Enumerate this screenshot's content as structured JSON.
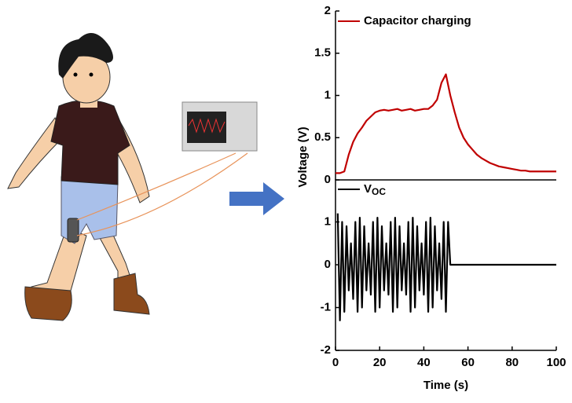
{
  "chart_data": [
    {
      "type": "line",
      "ylabel": "Voltage (V)",
      "ylim": [
        0,
        2
      ],
      "yticks": [
        0,
        0.5,
        1,
        1.5,
        2
      ],
      "xlim": [
        0,
        100
      ],
      "series": [
        {
          "name": "Capacitor charging",
          "color": "#c00000",
          "x": [
            0,
            2,
            4,
            6,
            8,
            10,
            12,
            14,
            16,
            18,
            20,
            22,
            24,
            26,
            28,
            30,
            32,
            34,
            36,
            38,
            40,
            42,
            44,
            46,
            48,
            50,
            52,
            54,
            56,
            58,
            60,
            62,
            64,
            66,
            68,
            70,
            72,
            74,
            76,
            78,
            80,
            82,
            84,
            86,
            88,
            90,
            92,
            94,
            96,
            98,
            100
          ],
          "values": [
            0.08,
            0.08,
            0.1,
            0.3,
            0.45,
            0.55,
            0.62,
            0.7,
            0.75,
            0.8,
            0.82,
            0.83,
            0.82,
            0.83,
            0.84,
            0.82,
            0.83,
            0.84,
            0.82,
            0.83,
            0.84,
            0.84,
            0.88,
            0.95,
            1.15,
            1.25,
            1.0,
            0.8,
            0.62,
            0.5,
            0.42,
            0.36,
            0.3,
            0.26,
            0.23,
            0.2,
            0.18,
            0.16,
            0.15,
            0.14,
            0.13,
            0.12,
            0.11,
            0.11,
            0.1,
            0.1,
            0.1,
            0.1,
            0.1,
            0.1,
            0.1
          ]
        }
      ]
    },
    {
      "type": "line",
      "xlabel": "Time (s)",
      "ylim": [
        -2,
        2
      ],
      "yticks": [
        -2,
        -1,
        0,
        1
      ],
      "xlim": [
        0,
        100
      ],
      "xticks": [
        0,
        20,
        40,
        60,
        80,
        100
      ],
      "series": [
        {
          "name": "VOC",
          "color": "#000000",
          "x": [
            1,
            2,
            3,
            4,
            5,
            6,
            7,
            8,
            9,
            10,
            11,
            12,
            13,
            14,
            15,
            16,
            17,
            18,
            19,
            20,
            21,
            22,
            23,
            24,
            25,
            26,
            27,
            28,
            29,
            30,
            31,
            32,
            33,
            34,
            35,
            36,
            37,
            38,
            39,
            40,
            41,
            42,
            43,
            44,
            45,
            46,
            47,
            48,
            49,
            50,
            51,
            52,
            100
          ],
          "values": [
            1.2,
            -1.3,
            1.0,
            -1.1,
            0.9,
            -0.6,
            0.5,
            -0.8,
            1.0,
            -1.1,
            1.1,
            -1.0,
            0.9,
            -0.6,
            0.5,
            -0.7,
            1.0,
            -1.1,
            1.1,
            -1.0,
            0.9,
            -0.6,
            0.5,
            -0.7,
            1.0,
            -1.1,
            1.1,
            -1.0,
            0.9,
            -0.6,
            0.5,
            -0.7,
            1.0,
            -1.1,
            1.1,
            -1.0,
            0.9,
            -0.6,
            0.5,
            -0.7,
            1.0,
            -1.1,
            1.1,
            -1.0,
            0.9,
            -0.6,
            0.5,
            -0.8,
            1.0,
            -1.1,
            1.0,
            0,
            0
          ]
        }
      ]
    }
  ]
}
